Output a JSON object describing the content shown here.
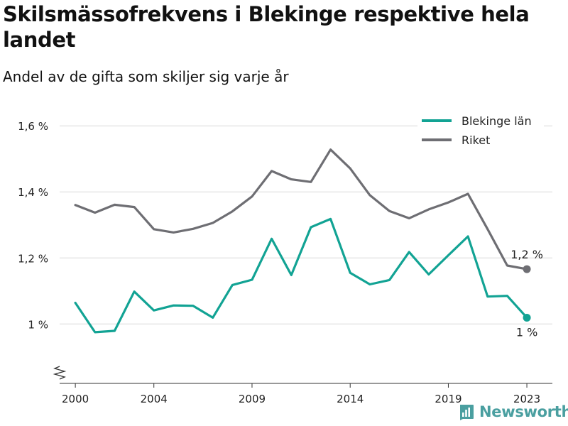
{
  "header": {
    "title": "Skilsmässofrekvens i Blekinge respektive hela landet",
    "subtitle": "Andel av de gifta som skiljer sig varje år"
  },
  "brand": {
    "name": "Newsworthy",
    "color": "#4a9fa0"
  },
  "chart_data": {
    "type": "line",
    "x": [
      2000,
      2001,
      2002,
      2003,
      2004,
      2005,
      2006,
      2007,
      2008,
      2009,
      2010,
      2011,
      2012,
      2013,
      2014,
      2015,
      2016,
      2017,
      2018,
      2019,
      2020,
      2021,
      2022,
      2023
    ],
    "series": [
      {
        "name": "Blekinge län",
        "color": "#12a394",
        "values": [
          1.064,
          0.975,
          0.979,
          1.098,
          1.041,
          1.056,
          1.055,
          1.019,
          1.118,
          1.134,
          1.258,
          1.148,
          1.293,
          1.318,
          1.155,
          1.12,
          1.133,
          1.218,
          1.15,
          1.208,
          1.265,
          1.083,
          1.085,
          1.019
        ],
        "end_label": "1 %"
      },
      {
        "name": "Riket",
        "color": "#6e6e73",
        "values": [
          1.36,
          1.337,
          1.361,
          1.354,
          1.287,
          1.277,
          1.288,
          1.306,
          1.341,
          1.386,
          1.463,
          1.438,
          1.43,
          1.528,
          1.471,
          1.39,
          1.342,
          1.32,
          1.347,
          1.368,
          1.394,
          1.287,
          1.177,
          1.166
        ],
        "end_label": "1,2 %"
      }
    ],
    "x_ticks": [
      {
        "value": 2000,
        "label": "2000"
      },
      {
        "value": 2004,
        "label": "2004"
      },
      {
        "value": 2009,
        "label": "2009"
      },
      {
        "value": 2014,
        "label": "2014"
      },
      {
        "value": 2019,
        "label": "2019"
      },
      {
        "value": 2023,
        "label": "2023"
      }
    ],
    "y_ticks": [
      {
        "value": 1.0,
        "label": "1 %"
      },
      {
        "value": 1.2,
        "label": "1,2 %"
      },
      {
        "value": 1.4,
        "label": "1,4 %"
      },
      {
        "value": 1.6,
        "label": "1,6 %"
      }
    ],
    "ylim": [
      0.82,
      1.68
    ],
    "xlim": [
      1999.2,
      2024.3
    ],
    "grid": true,
    "axis_break": true,
    "legend_position": "top-right"
  }
}
